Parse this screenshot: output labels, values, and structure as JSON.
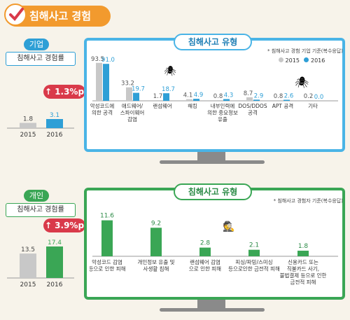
{
  "header": {
    "title": "침해사고 경험"
  },
  "enterprise": {
    "tag": "기업",
    "label": "침해사고 경험률",
    "increase": "1.3%p",
    "chart_title": "침해사고 유형",
    "note": "* 침해사고 경험 기업 기준(복수응답)",
    "legend": [
      "2015",
      "2016"
    ]
  },
  "individual": {
    "tag": "개인",
    "label": "침해사고 경험률",
    "increase": "3.9%p",
    "chart_title": "침해사고 유형",
    "note": "* 침해사고 경험자 기준(복수응답)"
  },
  "colors": {
    "orange": "#f29a2e",
    "blue": "#2e9fd6",
    "gray": "#c8c8c8",
    "green": "#3aa655",
    "red": "#d93a4a"
  },
  "chart_data": [
    {
      "type": "bar",
      "title": "침해사고 경험률",
      "categories": [
        "2015",
        "2016"
      ],
      "values": [
        1.8,
        3.1
      ]
    },
    {
      "type": "bar",
      "title": "침해사고 유형",
      "categories": [
        "악성코드에\n의한 공격",
        "애드웨어/\n스파이웨어\n감염",
        "랜섬웨어",
        "해킹",
        "내부인력에\n의한 중요정보\n유출",
        "DOS/DDOS\n공격",
        "APT 공격",
        "기타"
      ],
      "series": [
        {
          "name": "2015",
          "values": [
            93.5,
            33.2,
            1.7,
            4.1,
            0.8,
            8.7,
            0.8,
            0.2
          ]
        },
        {
          "name": "2016",
          "values": [
            91.0,
            19.7,
            18.7,
            4.9,
            4.3,
            2.9,
            2.6,
            0.0
          ]
        }
      ],
      "ylim": [
        0,
        100
      ]
    },
    {
      "type": "bar",
      "title": "침해사고 경험률",
      "categories": [
        "2015",
        "2016"
      ],
      "values": [
        13.5,
        17.4
      ]
    },
    {
      "type": "bar",
      "title": "침해사고 유형",
      "categories": [
        "악성코드 감염\n등으로 인한 피해",
        "개인정보 유출 및\n사생활 침해",
        "랜섬웨어 감염\n으로 인한 피해",
        "피싱/파밍/스미싱\n등으로인한 금전적 피해",
        "신용카드 또는\n직불카드 사기,\n불법결제 등으로 인한\n금전적 피해"
      ],
      "values": [
        11.6,
        9.2,
        2.8,
        2.1,
        1.8
      ],
      "ylim": [
        0,
        14
      ]
    }
  ]
}
